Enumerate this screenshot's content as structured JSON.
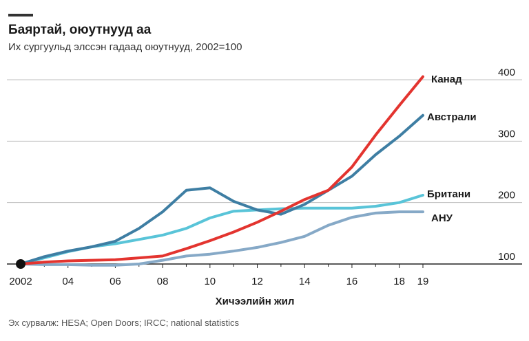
{
  "title": "Баяртай, оюутнууд аа",
  "subtitle": "Их сургуульд элссэн гадаад оюутнууд, 2002=100",
  "source": "Эх сурвалж: HESA; Open Doors; IRCC; national statistics",
  "chart_data": {
    "type": "line",
    "title": "Баяртай, оюутнууд аа",
    "subtitle": "Их сургуульд элссэн гадаад оюутнууд, 2002=100",
    "xlabel": "Хичээлийн жил",
    "ylabel": "",
    "x": [
      2002,
      2003,
      2004,
      2005,
      2006,
      2007,
      2008,
      2009,
      2010,
      2011,
      2012,
      2013,
      2014,
      2015,
      2016,
      2017,
      2018,
      2019
    ],
    "x_tick_labels": [
      "2002",
      "04",
      "06",
      "08",
      "10",
      "12",
      "14",
      "16",
      "18",
      "19"
    ],
    "x_tick_values": [
      2002,
      2004,
      2006,
      2008,
      2010,
      2012,
      2014,
      2016,
      2018,
      2019
    ],
    "y_ticks": [
      100,
      200,
      300,
      400
    ],
    "ylim": [
      100,
      400
    ],
    "grid": true,
    "start_marker": {
      "x": 2002,
      "y": 100
    },
    "series": [
      {
        "name": "Канад",
        "color": "#e3342f",
        "values": [
          100,
          103,
          105,
          106,
          107,
          110,
          113,
          125,
          138,
          152,
          168,
          186,
          205,
          220,
          258,
          310,
          358,
          405
        ]
      },
      {
        "name": "Австрали",
        "color": "#3e7ea3",
        "values": [
          100,
          112,
          121,
          128,
          137,
          158,
          185,
          220,
          224,
          202,
          188,
          181,
          197,
          220,
          243,
          278,
          308,
          342
        ]
      },
      {
        "name": "Британи",
        "color": "#59c4d8",
        "values": [
          100,
          110,
          120,
          128,
          133,
          140,
          147,
          158,
          175,
          186,
          188,
          190,
          191,
          191,
          191,
          194,
          200,
          212
        ]
      },
      {
        "name": "АНУ",
        "color": "#86a9c7",
        "values": [
          100,
          99,
          99,
          98,
          98,
          100,
          106,
          113,
          116,
          121,
          127,
          135,
          145,
          163,
          176,
          183,
          185,
          185
        ]
      }
    ]
  }
}
